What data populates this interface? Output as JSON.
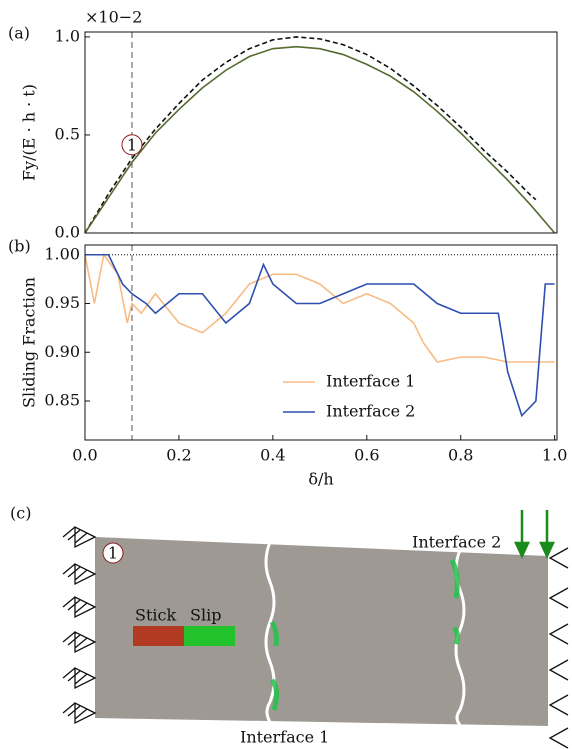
{
  "chart_data": [
    {
      "type": "line",
      "panel_label": "(a)",
      "y_label": "Fy/(E · h · t)",
      "y_multiplier": "×10−2",
      "xlim": [
        0,
        1.005
      ],
      "ylim": [
        0,
        1.025
      ],
      "yticks": [
        {
          "value": 0,
          "label": "0.0"
        },
        {
          "value": 0.5,
          "label": "0.5"
        },
        {
          "value": 1,
          "label": "1.0"
        }
      ],
      "vline_x": 0.1,
      "marker_label": "1",
      "marker_x": 0.1,
      "marker_y": 0.45,
      "series": [
        {
          "color": "#111111",
          "style": "dashed",
          "x": [
            0,
            0.05,
            0.1,
            0.15,
            0.2,
            0.25,
            0.3,
            0.35,
            0.4,
            0.45,
            0.5,
            0.55,
            0.6,
            0.65,
            0.7,
            0.75,
            0.8,
            0.85,
            0.9,
            0.95,
            0.96
          ],
          "values": [
            0,
            0.2,
            0.38,
            0.53,
            0.66,
            0.78,
            0.87,
            0.94,
            0.985,
            1.0,
            0.99,
            0.96,
            0.91,
            0.84,
            0.75,
            0.65,
            0.54,
            0.42,
            0.31,
            0.19,
            0.17
          ]
        },
        {
          "color": "#556b2f",
          "style": "solid",
          "x": [
            0,
            0.05,
            0.1,
            0.15,
            0.2,
            0.25,
            0.3,
            0.35,
            0.4,
            0.45,
            0.5,
            0.55,
            0.6,
            0.65,
            0.7,
            0.75,
            0.8,
            0.85,
            0.9,
            0.95,
            1.0
          ],
          "values": [
            0,
            0.18,
            0.36,
            0.51,
            0.63,
            0.74,
            0.83,
            0.9,
            0.94,
            0.95,
            0.94,
            0.91,
            0.86,
            0.8,
            0.72,
            0.62,
            0.51,
            0.39,
            0.27,
            0.14,
            0
          ]
        }
      ]
    },
    {
      "type": "line",
      "panel_label": "(b)",
      "y_label": "Sliding Fraction",
      "x_label": "δ/h",
      "xlim": [
        0,
        1.005
      ],
      "ylim": [
        0.81,
        1.01
      ],
      "xticks": [
        {
          "value": 0,
          "label": "0.0"
        },
        {
          "value": 0.2,
          "label": "0.2"
        },
        {
          "value": 0.4,
          "label": "0.4"
        },
        {
          "value": 0.6,
          "label": "0.6"
        },
        {
          "value": 0.8,
          "label": "0.8"
        },
        {
          "value": 1,
          "label": "1.0"
        }
      ],
      "yticks": [
        {
          "value": 0.85,
          "label": "0.85"
        },
        {
          "value": 0.9,
          "label": "0.90"
        },
        {
          "value": 0.95,
          "label": "0.95"
        },
        {
          "value": 1,
          "label": "1.00"
        }
      ],
      "vline_x": 0.1,
      "hline_y": 1,
      "series": [
        {
          "name": "Interface 1",
          "color": "#f8bb84",
          "style": "solid",
          "x": [
            0,
            0.02,
            0.04,
            0.07,
            0.09,
            0.1,
            0.12,
            0.15,
            0.2,
            0.25,
            0.3,
            0.35,
            0.4,
            0.45,
            0.5,
            0.55,
            0.6,
            0.65,
            0.7,
            0.72,
            0.75,
            0.8,
            0.85,
            0.9,
            1.0
          ],
          "values": [
            1.0,
            0.95,
            1.0,
            0.98,
            0.93,
            0.95,
            0.94,
            0.96,
            0.93,
            0.92,
            0.94,
            0.97,
            0.98,
            0.98,
            0.97,
            0.95,
            0.96,
            0.95,
            0.93,
            0.91,
            0.89,
            0.895,
            0.895,
            0.89,
            0.89
          ]
        },
        {
          "name": "Interface 2",
          "color": "#2f4fb0",
          "style": "solid",
          "x": [
            0,
            0.05,
            0.08,
            0.1,
            0.13,
            0.15,
            0.2,
            0.25,
            0.3,
            0.35,
            0.38,
            0.4,
            0.45,
            0.5,
            0.55,
            0.6,
            0.65,
            0.7,
            0.75,
            0.8,
            0.85,
            0.88,
            0.9,
            0.93,
            0.96,
            0.98,
            1.0
          ],
          "values": [
            1.0,
            1.0,
            0.97,
            0.96,
            0.95,
            0.94,
            0.96,
            0.96,
            0.93,
            0.95,
            0.99,
            0.97,
            0.95,
            0.95,
            0.96,
            0.97,
            0.97,
            0.97,
            0.95,
            0.94,
            0.94,
            0.94,
            0.88,
            0.835,
            0.85,
            0.97,
            0.97
          ]
        }
      ]
    }
  ],
  "diagram": {
    "panel_label": "(c)",
    "marker_label": "1",
    "stick": "Stick",
    "slip": "Slip",
    "interface_1": "Interface 1",
    "interface_2": "Interface 2"
  }
}
